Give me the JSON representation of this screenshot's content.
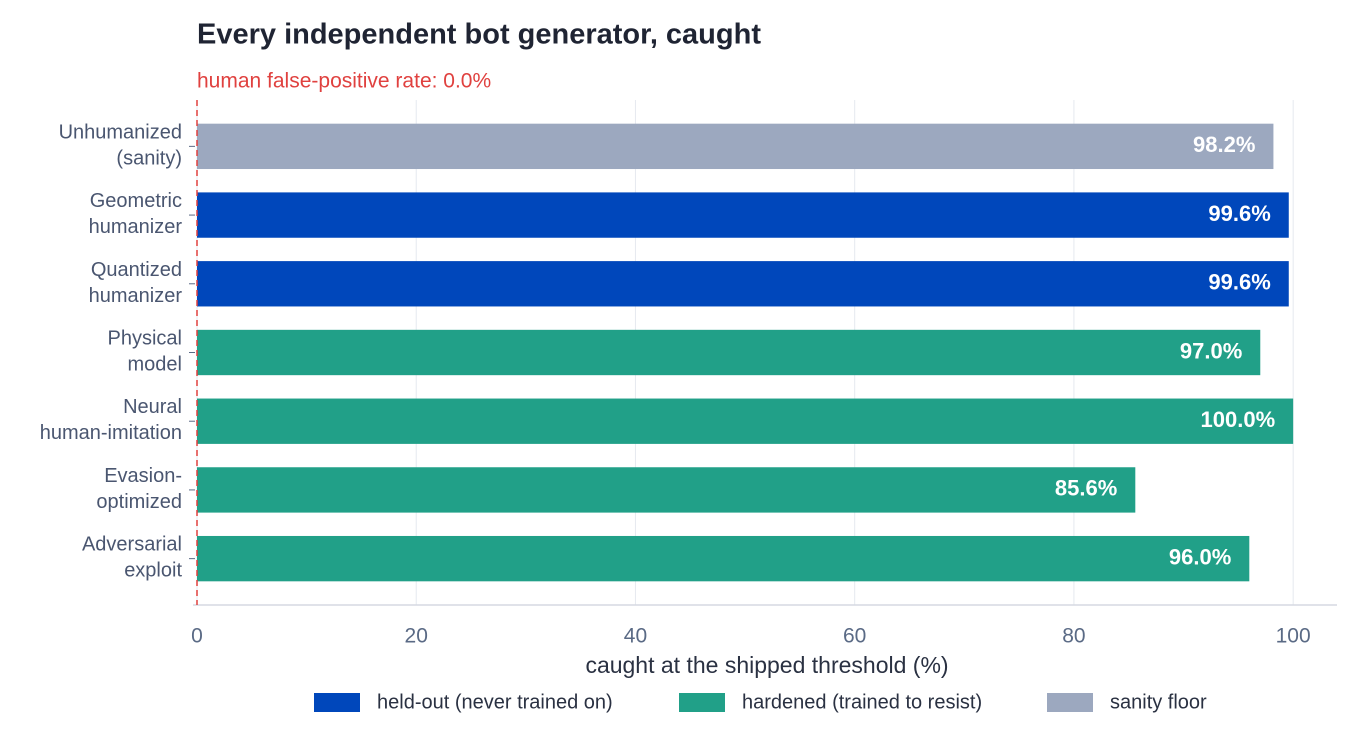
{
  "chart_data": {
    "type": "bar",
    "orientation": "horizontal",
    "title": "Every independent bot generator, caught",
    "x_label": "caught at the shipped threshold (%)",
    "categories": [
      "Unhumanized\n(sanity)",
      "Geometric\nhumanizer",
      "Quantized\nhumanizer",
      "Physical\nmodel",
      "Neural\nhuman-imitation",
      "Evasion-\noptimized",
      "Adversarial\nexploit"
    ],
    "series": [
      {
        "name": "held-out (never trained on)",
        "color": "#0047bb",
        "values": [
          null,
          99.6,
          99.6,
          null,
          null,
          null,
          null
        ],
        "value_labels": [
          null,
          "99.6%",
          "99.6%",
          null,
          null,
          null,
          null
        ]
      },
      {
        "name": "hardened (trained to resist)",
        "color": "#21a088",
        "values": [
          null,
          null,
          null,
          97.0,
          100.0,
          85.6,
          96.0
        ],
        "value_labels": [
          null,
          null,
          null,
          "97.0%",
          "100.0%",
          "85.6%",
          "96.0%"
        ]
      },
      {
        "name": "sanity floor",
        "color": "#9ca8bf",
        "values": [
          98.2,
          null,
          null,
          null,
          null,
          null,
          null
        ],
        "value_labels": [
          "98.2%",
          null,
          null,
          null,
          null,
          null,
          null
        ]
      }
    ],
    "reference_line": {
      "value": 0,
      "label": "human false-positive rate: 0.0%",
      "color": "#e0413f"
    },
    "xlim": [
      0,
      104
    ],
    "xticks": [
      0,
      20,
      40,
      60,
      80,
      100
    ],
    "grid": true,
    "legend_position": "bottom"
  }
}
